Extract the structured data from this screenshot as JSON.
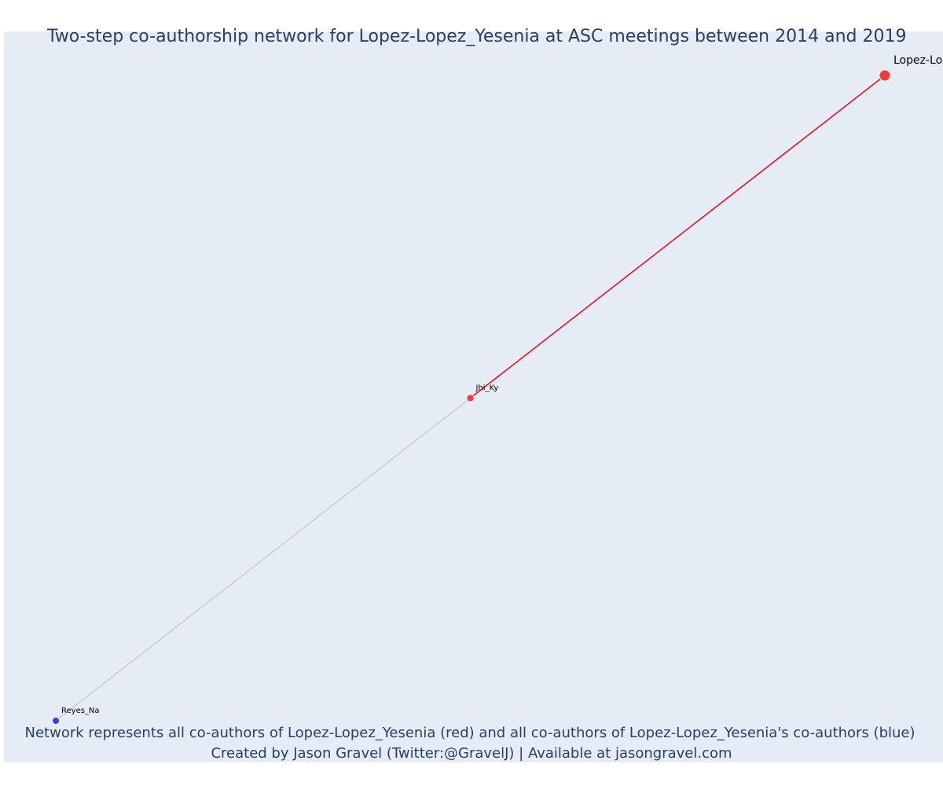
{
  "figure": {
    "title": "Two-step co-authorship network for Lopez-Lopez_Yesenia at ASC meetings between 2014 and 2019",
    "caption_line1": "Network represents all co-authors of Lopez-Lopez_Yesenia (red) and all co-authors of Lopez-Lopez_Yesenia's co-authors (blue)",
    "caption_line2": "Created by Jason Gravel (Twitter:@GravelJ) | Available at jasongravel.com",
    "background_color": "#e5ecf6",
    "text_color": "#2a3f5f"
  },
  "chart_data": {
    "type": "network",
    "title": "Two-step co-authorship network for Lopez-Lopez_Yesenia at ASC meetings between 2014 and 2019",
    "grid": false,
    "legend": "none",
    "colors": {
      "focal": "#ef3b3b",
      "coauthor": "#ef3b3b",
      "second_step": "#3b3bef",
      "direct_edge": "#e8141b",
      "indirect_edge": "#bdbdc6"
    },
    "nodes": [
      {
        "id": "Lopez-Lopez_Yesenia",
        "label": "Lopez-Lopez_Yesenia",
        "group": "focal",
        "x": 1.0,
        "y": 1.0
      },
      {
        "id": "Jhi_Ky",
        "label": "Jhi_Ky",
        "group": "coauthor",
        "x": 0.5,
        "y": 0.5
      },
      {
        "id": "Reyes_Na",
        "label": "Reyes_Na",
        "group": "second_step",
        "x": 0.0,
        "y": 0.0
      }
    ],
    "edges": [
      {
        "source": "Lopez-Lopez_Yesenia",
        "target": "Jhi_Ky",
        "kind": "direct"
      },
      {
        "source": "Jhi_Ky",
        "target": "Reyes_Na",
        "kind": "indirect"
      }
    ]
  }
}
